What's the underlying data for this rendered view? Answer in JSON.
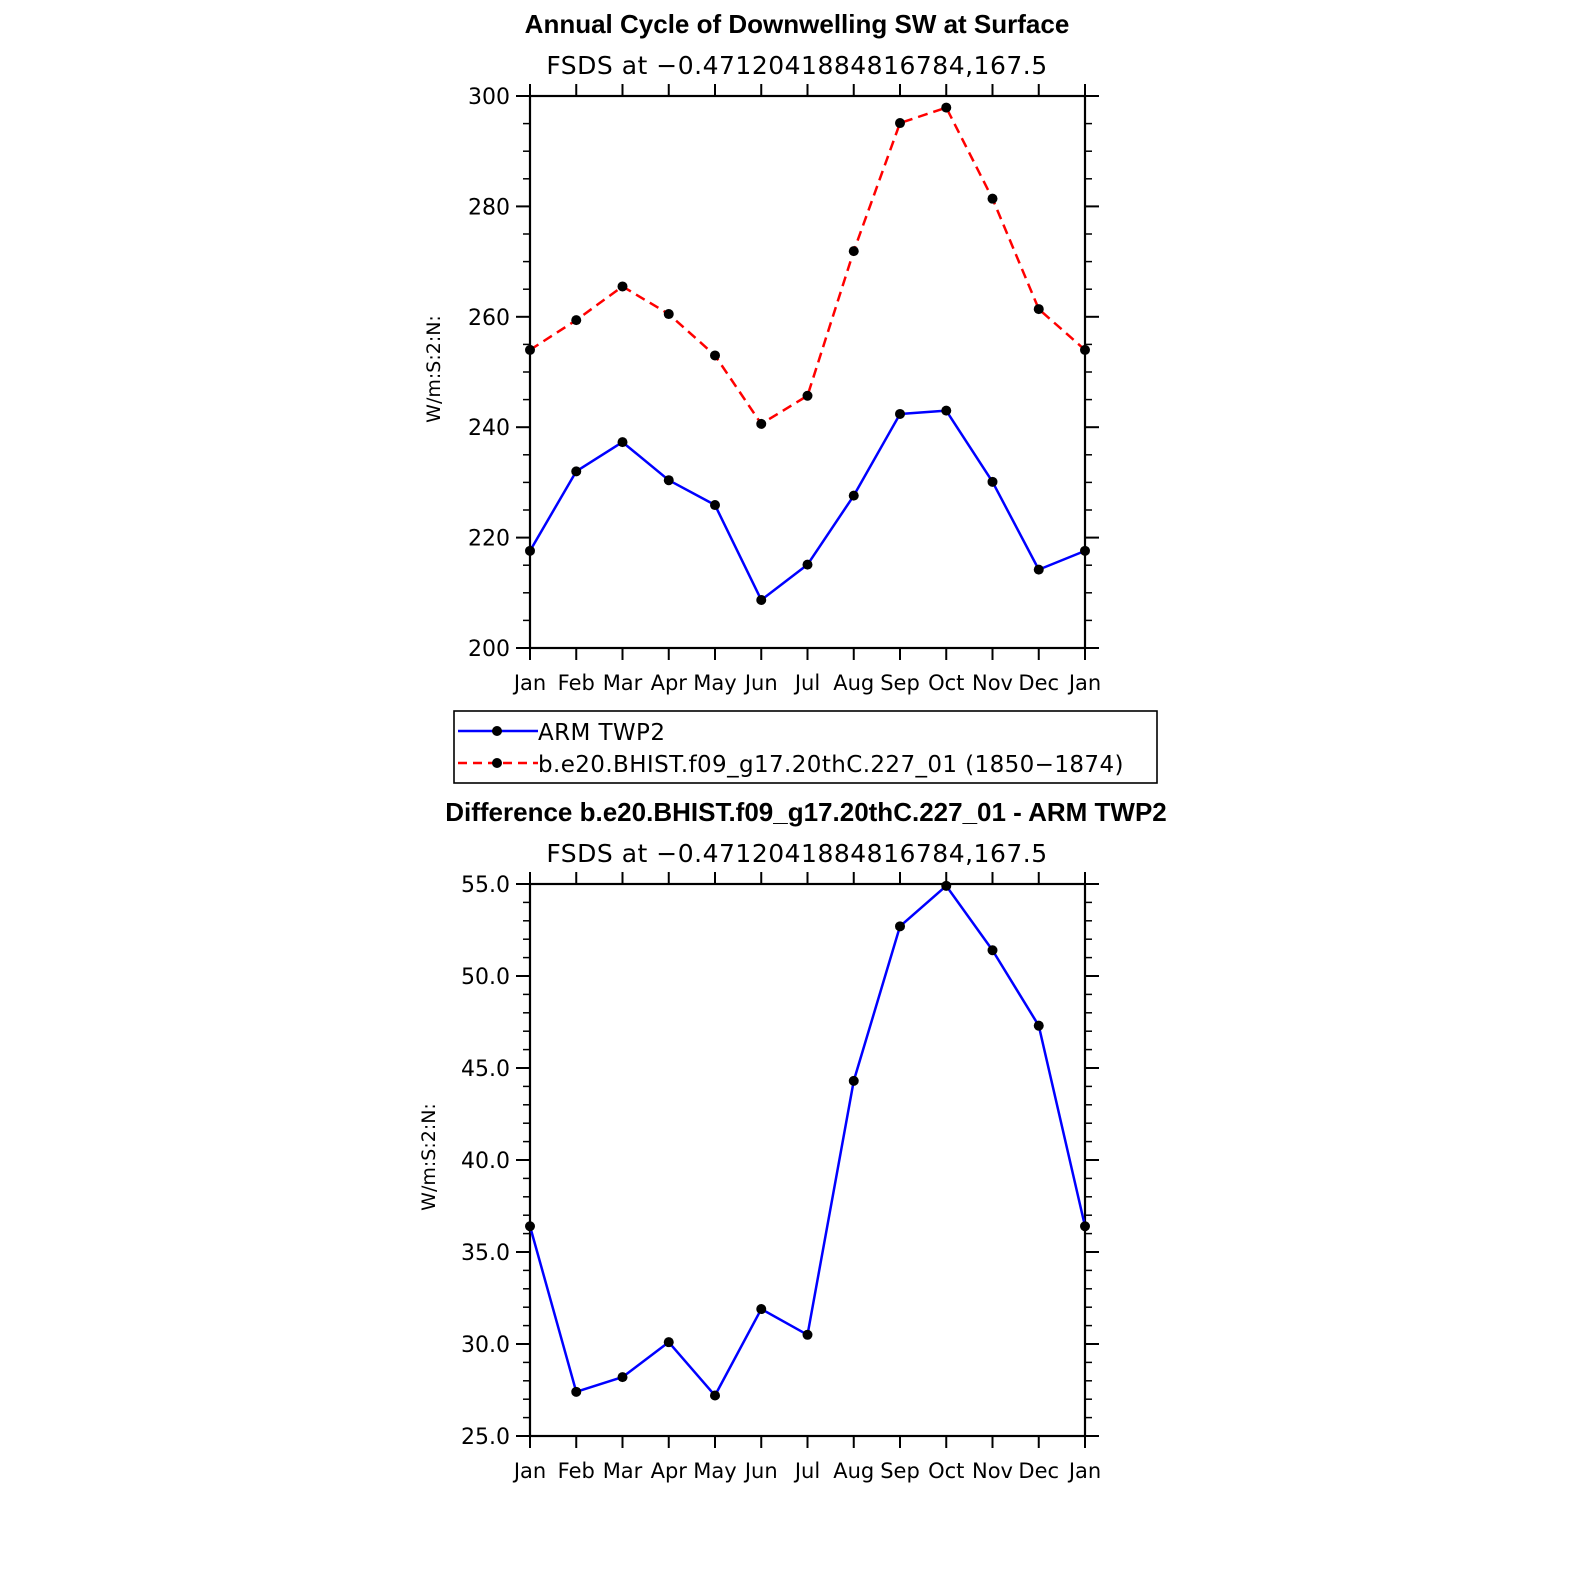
{
  "chart_data": [
    {
      "type": "line",
      "title": "Annual Cycle of Downwelling SW at Surface",
      "subtitle": "FSDS at −0.4712041884816784,167.5",
      "xlabel": "",
      "ylabel": "W/m:S:2:N:",
      "categories": [
        "Jan",
        "Feb",
        "Mar",
        "Apr",
        "May",
        "Jun",
        "Jul",
        "Aug",
        "Sep",
        "Oct",
        "Nov",
        "Dec",
        "Jan"
      ],
      "ylim": [
        200,
        300
      ],
      "yticks": [
        200,
        220,
        240,
        260,
        280,
        300
      ],
      "ytick_labels": [
        "200",
        "220",
        "240",
        "260",
        "280",
        "300"
      ],
      "grid": false,
      "series": [
        {
          "name": "ARM TWP2",
          "color": "#0000ff",
          "dash": "solid",
          "values": [
            217.6,
            232.0,
            237.3,
            230.4,
            225.9,
            208.7,
            215.1,
            227.6,
            242.4,
            243.0,
            230.1,
            214.2,
            217.6
          ]
        },
        {
          "name": "b.e20.BHIST.f09_g17.20thC.227_01 (1850−1874)",
          "color": "#ff0000",
          "dash": "dashed",
          "values": [
            254.0,
            259.4,
            265.5,
            260.5,
            253.0,
            240.6,
            245.7,
            271.9,
            295.1,
            297.9,
            281.4,
            261.4,
            254.0
          ]
        }
      ],
      "legend_position": "below"
    },
    {
      "type": "line",
      "title": "Difference b.e20.BHIST.f09_g17.20thC.227_01 - ARM TWP2",
      "subtitle": "FSDS at −0.4712041884816784,167.5",
      "xlabel": "",
      "ylabel": "W/m:S:2:N:",
      "categories": [
        "Jan",
        "Feb",
        "Mar",
        "Apr",
        "May",
        "Jun",
        "Jul",
        "Aug",
        "Sep",
        "Oct",
        "Nov",
        "Dec",
        "Jan"
      ],
      "ylim": [
        25,
        55
      ],
      "yticks": [
        25,
        30,
        35,
        40,
        45,
        50,
        55
      ],
      "ytick_labels": [
        "25.0",
        "30.0",
        "35.0",
        "40.0",
        "45.0",
        "50.0",
        "55.0"
      ],
      "grid": false,
      "series": [
        {
          "color": "#0000ff",
          "dash": "solid",
          "values": [
            36.4,
            27.4,
            28.2,
            30.1,
            27.2,
            31.9,
            30.5,
            44.3,
            52.7,
            54.9,
            51.4,
            47.3,
            36.4
          ]
        }
      ]
    }
  ]
}
